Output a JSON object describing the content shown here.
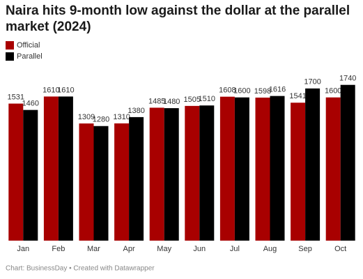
{
  "chart_data": {
    "type": "bar",
    "title": "Naira hits 9-month low against the dollar at the parallel market (2024)",
    "categories": [
      "Jan",
      "Feb",
      "Mar",
      "Apr",
      "May",
      "Jun",
      "Jul",
      "Aug",
      "Sep",
      "Oct"
    ],
    "series": [
      {
        "name": "Official",
        "color": "#a80000",
        "values": [
          1531,
          1610,
          1309,
          1310,
          1485,
          1505,
          1608,
          1598,
          1541,
          1600
        ]
      },
      {
        "name": "Parallel",
        "color": "#000000",
        "values": [
          1460,
          1610,
          1280,
          1380,
          1480,
          1510,
          1600,
          1616,
          1700,
          1740
        ]
      }
    ],
    "ylim": [
      0,
      1800
    ],
    "source": "Chart: BusinessDay • Created with Datawrapper"
  }
}
